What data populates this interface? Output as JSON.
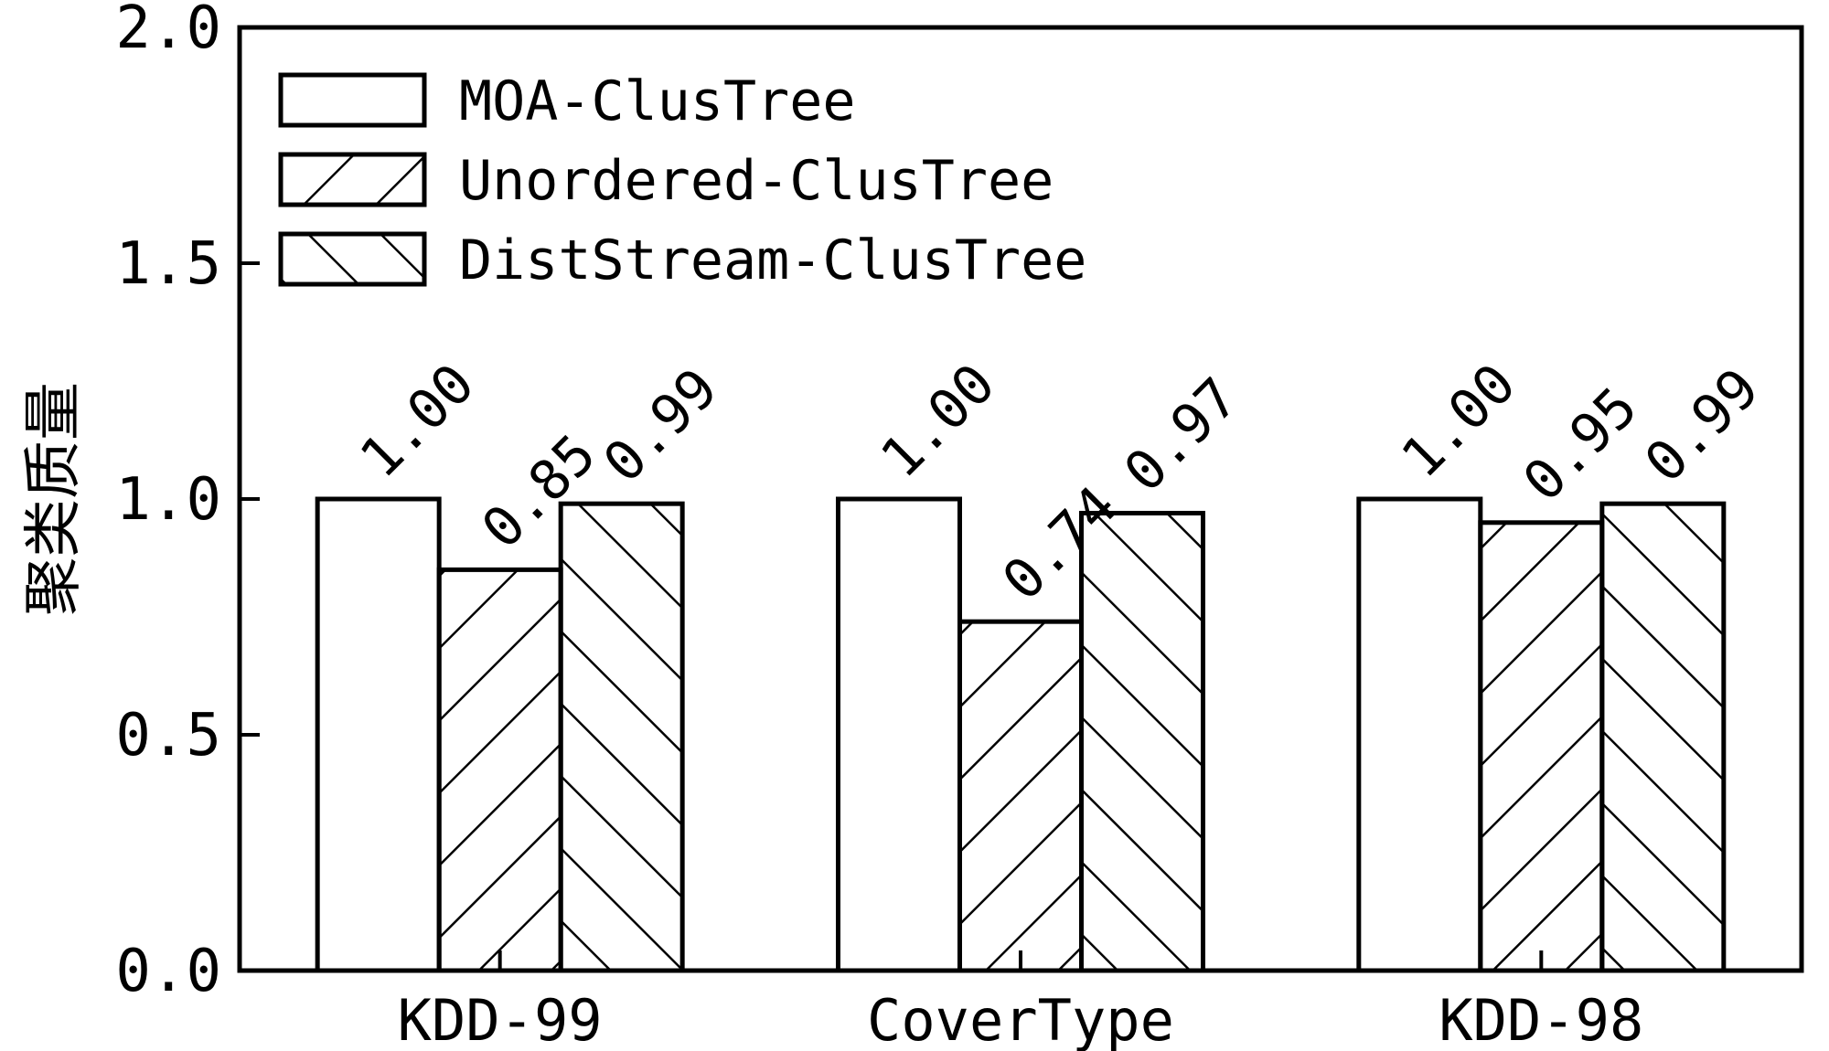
{
  "chart_data": {
    "type": "bar",
    "categories": [
      "KDD-99",
      "CoverType",
      "KDD-98"
    ],
    "series": [
      {
        "name": "MOA-ClusTree",
        "values": [
          1.0,
          1.0,
          1.0
        ],
        "labels": [
          "1.00",
          "1.00",
          "1.00"
        ],
        "pattern": "none"
      },
      {
        "name": "Unordered-ClusTree",
        "values": [
          0.85,
          0.74,
          0.95
        ],
        "labels": [
          "0.85",
          "0.74",
          "0.95"
        ],
        "pattern": "forward-hatch"
      },
      {
        "name": "DistStream-ClusTree",
        "values": [
          0.99,
          0.97,
          0.99
        ],
        "labels": [
          "0.99",
          "0.97",
          "0.99"
        ],
        "pattern": "backward-hatch"
      }
    ],
    "ylabel": "聚类质量",
    "xlabel": "",
    "ylim": [
      0,
      2.0
    ],
    "yticks": [
      "0.0",
      "0.5",
      "1.0",
      "1.5",
      "2.0"
    ],
    "legend_position": "top-left",
    "grid": false
  }
}
